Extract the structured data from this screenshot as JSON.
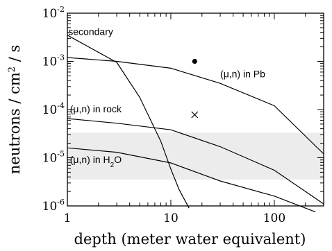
{
  "chart_data": {
    "type": "line",
    "xlabel": "depth (meter water equivalent)",
    "ylabel": {
      "pre": "neutrons / cm",
      "sup": "2",
      "post": " / s"
    },
    "x_scale": "log",
    "y_scale": "log",
    "xlim": [
      1,
      300
    ],
    "ylim": [
      1e-06,
      0.01
    ],
    "x_ticks": [
      {
        "value": 1,
        "label": "1"
      },
      {
        "value": 10,
        "label": "10"
      },
      {
        "value": 100,
        "label": "100"
      }
    ],
    "y_ticks": [
      {
        "value": 1e-06,
        "base": "10",
        "exp": "-6"
      },
      {
        "value": 1e-05,
        "base": "10",
        "exp": "-5"
      },
      {
        "value": 0.0001,
        "base": "10",
        "exp": "-4"
      },
      {
        "value": 0.001,
        "base": "10",
        "exp": "-3"
      },
      {
        "value": 0.01,
        "base": "10",
        "exp": "-2"
      }
    ],
    "band": {
      "y_min": 3.5e-06,
      "y_max": 3.3e-05,
      "color": "#ececec"
    },
    "series": [
      {
        "name": "secondary",
        "label_parts": [
          {
            "text": "secondary"
          }
        ],
        "label_anchor": [
          1.02,
          0.0035
        ],
        "x": [
          1,
          3,
          5,
          8,
          10,
          12,
          15
        ],
        "y": [
          0.0035,
          0.00095,
          0.00018,
          2.2e-05,
          5.8e-06,
          2.2e-06,
          9e-07
        ]
      },
      {
        "name": "(μ,n) in Pb",
        "label_parts": [
          {
            "text": "(μ,n) in Pb"
          }
        ],
        "label_anchor": [
          30,
          0.00047
        ],
        "x": [
          1,
          3,
          10,
          30,
          100,
          300
        ],
        "y": [
          0.0012,
          0.001,
          0.00072,
          0.00035,
          0.00012,
          1.2e-05
        ]
      },
      {
        "name": "(μ,n) in rock",
        "label_parts": [
          {
            "text": "(μ,n) in rock"
          }
        ],
        "label_anchor": [
          1.06,
          8.8e-05
        ],
        "x": [
          1,
          3,
          10,
          30,
          100,
          300
        ],
        "y": [
          6.5e-05,
          5.2e-05,
          3.8e-05,
          1.7e-05,
          5.5e-06,
          1.1e-06
        ]
      },
      {
        "name": "(μ,n) in H2O",
        "label_parts": [
          {
            "text": "(μ,n) in H"
          },
          {
            "text": "2",
            "sub": true
          },
          {
            "text": "O"
          }
        ],
        "label_anchor": [
          1.06,
          7.8e-06
        ],
        "x": [
          1,
          3,
          10,
          30,
          100,
          250
        ],
        "y": [
          1.6e-05,
          1.3e-05,
          7.8e-06,
          3.3e-06,
          1.6e-06,
          7.5e-07
        ]
      }
    ],
    "points": [
      {
        "name": "dot",
        "marker": "filled-circle",
        "x": 17,
        "y": 0.001
      },
      {
        "name": "cross",
        "marker": "x",
        "x": 17,
        "y": 7.8e-05
      }
    ],
    "grid": false,
    "legend": "none"
  }
}
